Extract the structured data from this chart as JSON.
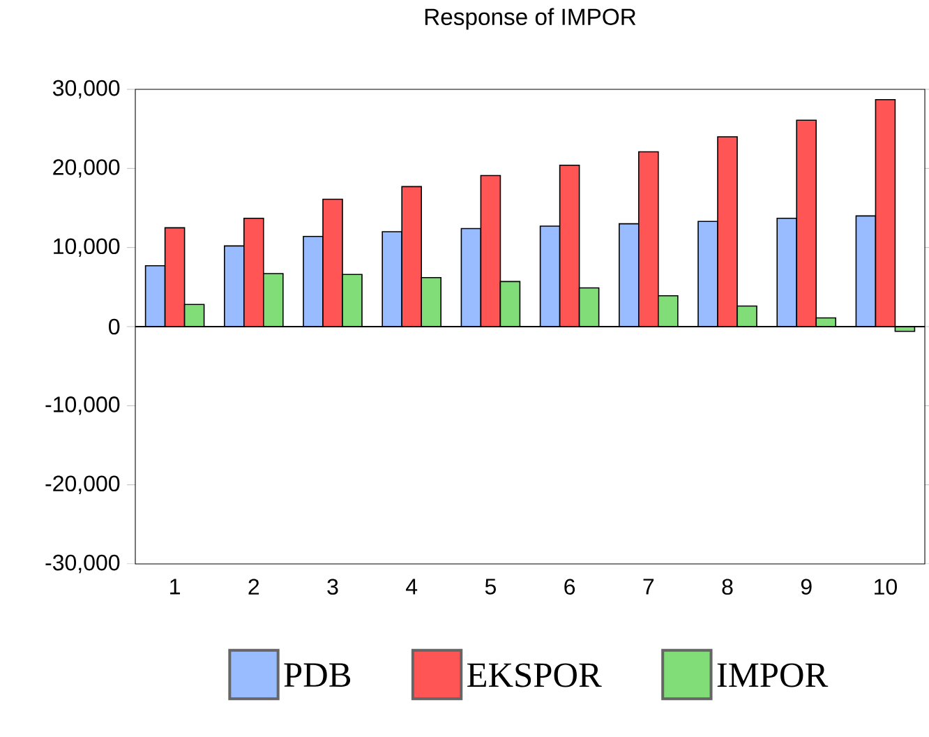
{
  "chart_data": {
    "type": "bar",
    "title": "Response of IMPOR",
    "categories": [
      "1",
      "2",
      "3",
      "4",
      "5",
      "6",
      "7",
      "8",
      "9",
      "10"
    ],
    "series": [
      {
        "name": "PDB",
        "color": "#99bbff",
        "values": [
          7700,
          10200,
          11400,
          12000,
          12400,
          12700,
          13000,
          13300,
          13700,
          14000
        ]
      },
      {
        "name": "EKSPOR",
        "color": "#ff5555",
        "values": [
          12500,
          13700,
          16100,
          17700,
          19100,
          20400,
          22100,
          24000,
          26100,
          28700
        ]
      },
      {
        "name": "IMPOR",
        "color": "#80dd77",
        "values": [
          2800,
          6700,
          6600,
          6200,
          5700,
          4900,
          3900,
          2600,
          1100,
          -600
        ]
      }
    ],
    "ylim": [
      -30000,
      30000
    ],
    "yticks": [
      {
        "value": -30000,
        "label": "-30,000"
      },
      {
        "value": -20000,
        "label": "-20,000"
      },
      {
        "value": -10000,
        "label": "-10,000"
      },
      0,
      {
        "value": 10000,
        "label": "10,000"
      },
      {
        "value": 20000,
        "label": "20,000"
      },
      {
        "value": 30000,
        "label": "30,000"
      }
    ],
    "ref_lines": [
      {
        "axis": "y",
        "value": 0,
        "color": "#000000"
      }
    ],
    "legend": "bottom"
  }
}
